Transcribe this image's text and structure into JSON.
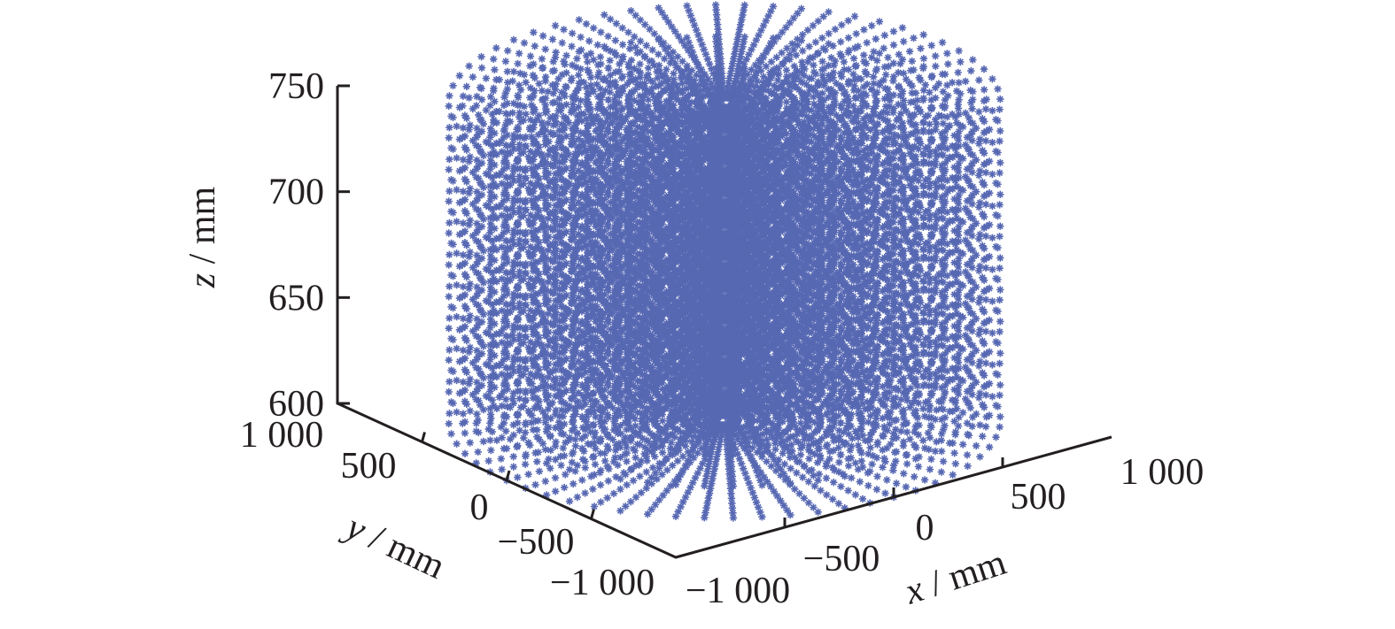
{
  "chart_data": {
    "type": "scatter",
    "projection": "3d",
    "marker": "asterisk",
    "color": "#3a4ea6",
    "grid": false,
    "legend": "none",
    "title": "",
    "xlabel": "x / mm",
    "ylabel": "y / mm",
    "zlabel": "z / mm",
    "xlim": [
      -1000,
      1000
    ],
    "ylim": [
      -1000,
      1000
    ],
    "zlim": [
      600,
      750
    ],
    "x_ticks": [
      {
        "value": -1000,
        "label": "−1 000"
      },
      {
        "value": -500,
        "label": "−500"
      },
      {
        "value": 0,
        "label": "0"
      },
      {
        "value": 500,
        "label": "500"
      },
      {
        "value": 1000,
        "label": "1 000"
      }
    ],
    "y_ticks": [
      {
        "value": -1000,
        "label": "−1 000"
      },
      {
        "value": -500,
        "label": "−500"
      },
      {
        "value": 0,
        "label": "0"
      },
      {
        "value": 500,
        "label": "500"
      },
      {
        "value": 1000,
        "label": "1 000"
      }
    ],
    "z_ticks": [
      {
        "value": 600,
        "label": "600"
      },
      {
        "value": 650,
        "label": "650"
      },
      {
        "value": 700,
        "label": "700"
      },
      {
        "value": 750,
        "label": "750"
      }
    ],
    "point_cloud": {
      "shape": "cylinder",
      "radius_max": 1000,
      "radial_lines": 60,
      "radial_step": 50,
      "z_levels": [
        600,
        615,
        630,
        645,
        660,
        675,
        690,
        705,
        720,
        735,
        750
      ]
    }
  }
}
